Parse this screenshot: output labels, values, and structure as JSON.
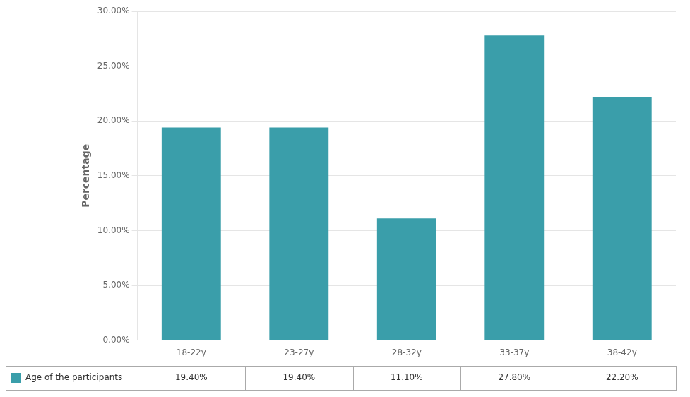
{
  "chart_data": {
    "type": "bar",
    "categories": [
      "18-22y",
      "23-27y",
      "28-32y",
      "33-37y",
      "38-42y"
    ],
    "series": [
      {
        "name": "Age of the participants",
        "color": "#3a9eaa",
        "values": [
          19.4,
          19.4,
          11.1,
          27.8,
          22.2
        ],
        "value_labels": [
          "19.40%",
          "19.40%",
          "11.10%",
          "27.80%",
          "22.20%"
        ]
      }
    ],
    "y_label": "Percentage",
    "ylim": [
      0,
      30
    ],
    "yticks": [
      {
        "value": 0,
        "label": "0.00%"
      },
      {
        "value": 5,
        "label": "5.00%"
      },
      {
        "value": 10,
        "label": "10.00%"
      },
      {
        "value": 15,
        "label": "15.00%"
      },
      {
        "value": 20,
        "label": "20.00%"
      },
      {
        "value": 25,
        "label": "25.00%"
      },
      {
        "value": 30,
        "label": "30.00%"
      }
    ],
    "grid": true,
    "data_labels": true
  }
}
